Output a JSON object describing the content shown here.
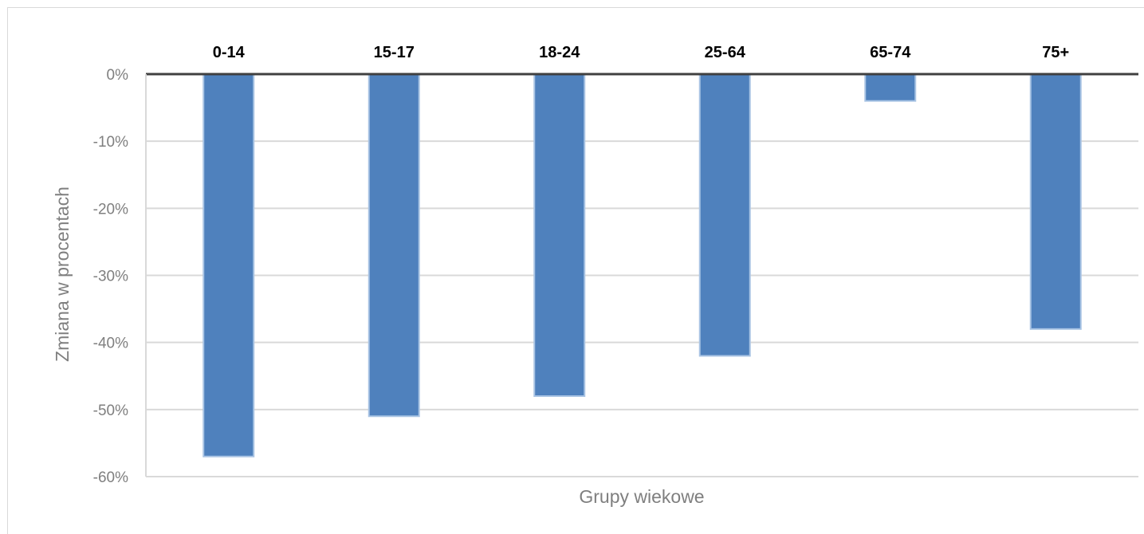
{
  "chart_data": {
    "type": "bar",
    "categories": [
      "0-14",
      "15-17",
      "18-24",
      "25-64",
      "65-74",
      "75+"
    ],
    "values": [
      -57,
      -51,
      -48,
      -42,
      -4,
      -38
    ],
    "xlabel": "Grupy wiekowe",
    "ylabel": "Zmiana w procentach",
    "ylim": [
      -60,
      0
    ],
    "yticks": [
      "0%",
      "-10%",
      "-20%",
      "-30%",
      "-40%",
      "-50%",
      "-60%"
    ],
    "category_labels_position": "top",
    "grid": true,
    "legend": "none",
    "colors": {
      "bar": "#4f81bd",
      "bar_edge": "#a9c4e4",
      "grid": "#d9d9d9",
      "zero_line": "#404040",
      "tick_text": "#7f7f7f",
      "category_text": "#000000"
    }
  }
}
